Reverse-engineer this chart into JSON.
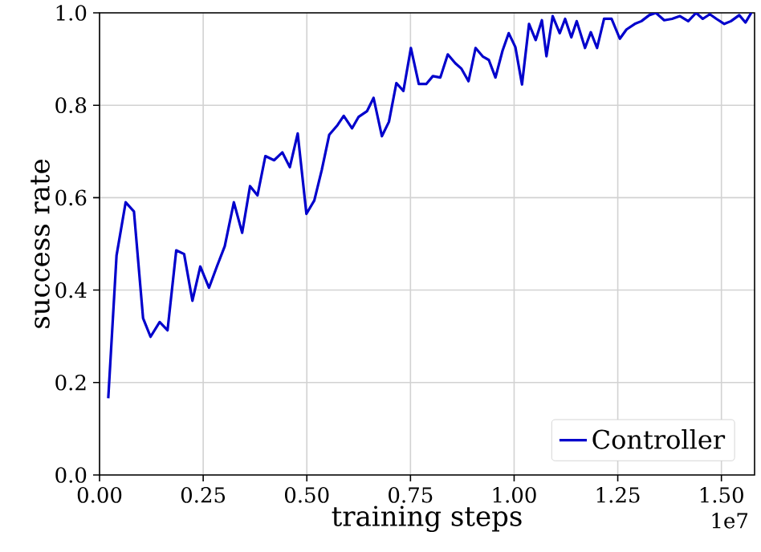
{
  "chart_data": {
    "type": "line",
    "xlabel": "training steps",
    "ylabel": "success rate",
    "x": [
      0.021,
      0.041,
      0.063,
      0.083,
      0.105,
      0.123,
      0.145,
      0.164,
      0.185,
      0.204,
      0.224,
      0.243,
      0.264,
      0.283,
      0.302,
      0.324,
      0.344,
      0.363,
      0.381,
      0.4,
      0.421,
      0.441,
      0.459,
      0.478,
      0.499,
      0.518,
      0.536,
      0.554,
      0.574,
      0.589,
      0.609,
      0.625,
      0.645,
      0.661,
      0.681,
      0.698,
      0.716,
      0.733,
      0.751,
      0.77,
      0.788,
      0.804,
      0.822,
      0.84,
      0.858,
      0.873,
      0.89,
      0.907,
      0.925,
      0.939,
      0.955,
      0.972,
      0.987,
      1.003,
      1.019,
      1.036,
      1.052,
      1.067,
      1.078,
      1.093,
      1.11,
      1.123,
      1.138,
      1.151,
      1.171,
      1.185,
      1.2,
      1.217,
      1.235,
      1.255,
      1.271,
      1.291,
      1.307,
      1.326,
      1.342,
      1.362,
      1.381,
      1.4,
      1.42,
      1.439,
      1.455,
      1.472,
      1.488,
      1.507,
      1.523,
      1.543,
      1.558,
      1.572
    ],
    "series": [
      {
        "name": "Controller",
        "color": "#0000cc",
        "values": [
          0.166,
          0.475,
          0.59,
          0.57,
          0.339,
          0.299,
          0.331,
          0.313,
          0.486,
          0.478,
          0.377,
          0.451,
          0.405,
          0.451,
          0.495,
          0.59,
          0.524,
          0.625,
          0.605,
          0.69,
          0.681,
          0.698,
          0.666,
          0.739,
          0.565,
          0.594,
          0.66,
          0.736,
          0.757,
          0.777,
          0.75,
          0.775,
          0.787,
          0.816,
          0.733,
          0.764,
          0.848,
          0.831,
          0.924,
          0.846,
          0.846,
          0.863,
          0.86,
          0.91,
          0.891,
          0.879,
          0.852,
          0.924,
          0.905,
          0.898,
          0.86,
          0.918,
          0.956,
          0.926,
          0.845,
          0.976,
          0.941,
          0.984,
          0.906,
          0.993,
          0.956,
          0.987,
          0.947,
          0.982,
          0.924,
          0.958,
          0.924,
          0.987,
          0.987,
          0.944,
          0.964,
          0.976,
          0.982,
          0.995,
          1.0,
          0.984,
          0.987,
          0.993,
          0.982,
          1.0,
          0.987,
          0.997,
          0.987,
          0.976,
          0.982,
          0.995,
          0.979,
          1.0
        ]
      }
    ],
    "xlim": [
      0,
      1.58
    ],
    "ylim": [
      0,
      1.0
    ],
    "xticks": [
      {
        "value": 0,
        "label": "0.00"
      },
      0.25,
      {
        "value": 0.5,
        "label": "0.50"
      },
      0.75,
      {
        "value": 1,
        "label": "1.00"
      },
      1.25,
      {
        "value": 1.5,
        "label": "1.50"
      }
    ],
    "yticks": [
      {
        "value": 0,
        "label": "0.0"
      },
      0.2,
      0.4,
      0.6,
      0.8,
      {
        "value": 1,
        "label": "1.0"
      }
    ],
    "grid": true,
    "legend": "bottom right",
    "annotations": [
      "1e7"
    ]
  }
}
